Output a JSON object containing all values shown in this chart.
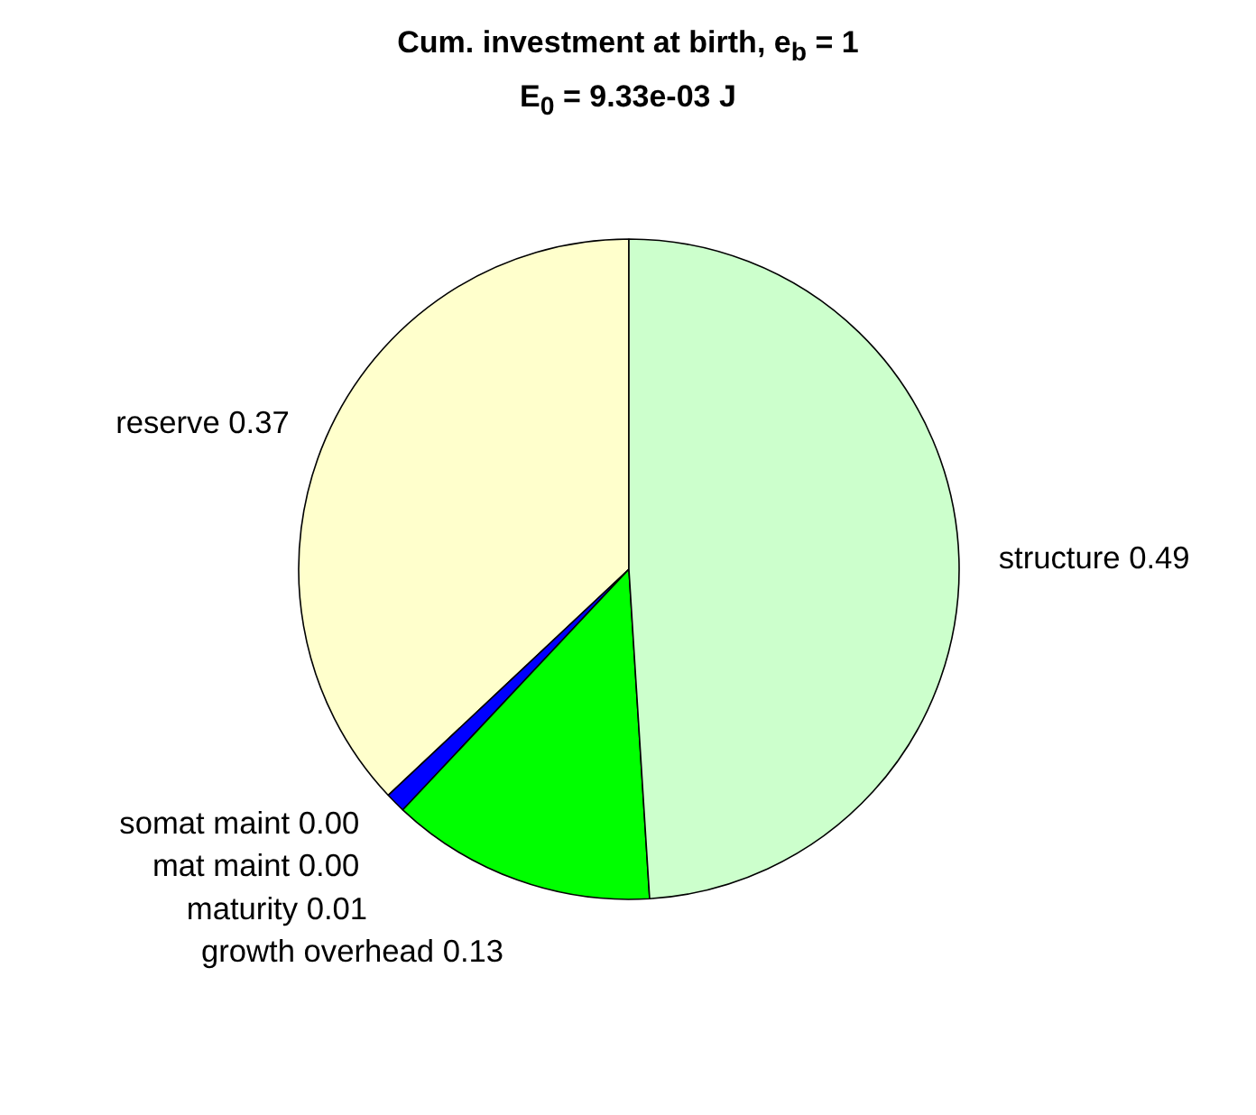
{
  "chart_data": {
    "type": "pie",
    "title": "Cum. investment at birth, e$_{b}$ = 1",
    "subtitle": "E$_{0}$ = 9.33e-03 J",
    "categories": [
      "reserve",
      "somat maint",
      "mat maint",
      "maturity",
      "growth overhead",
      "structure"
    ],
    "values": [
      0.37,
      0.0,
      0.0,
      0.01,
      0.13,
      0.49
    ],
    "colors": [
      "#ffffcc",
      "#ff0000",
      "#ff00ff",
      "#0000ff",
      "#00ff00",
      "#ccffcc"
    ],
    "value_labels": [
      "0.37",
      "0.00",
      "0.00",
      "0.01",
      "0.13",
      "0.49"
    ]
  }
}
